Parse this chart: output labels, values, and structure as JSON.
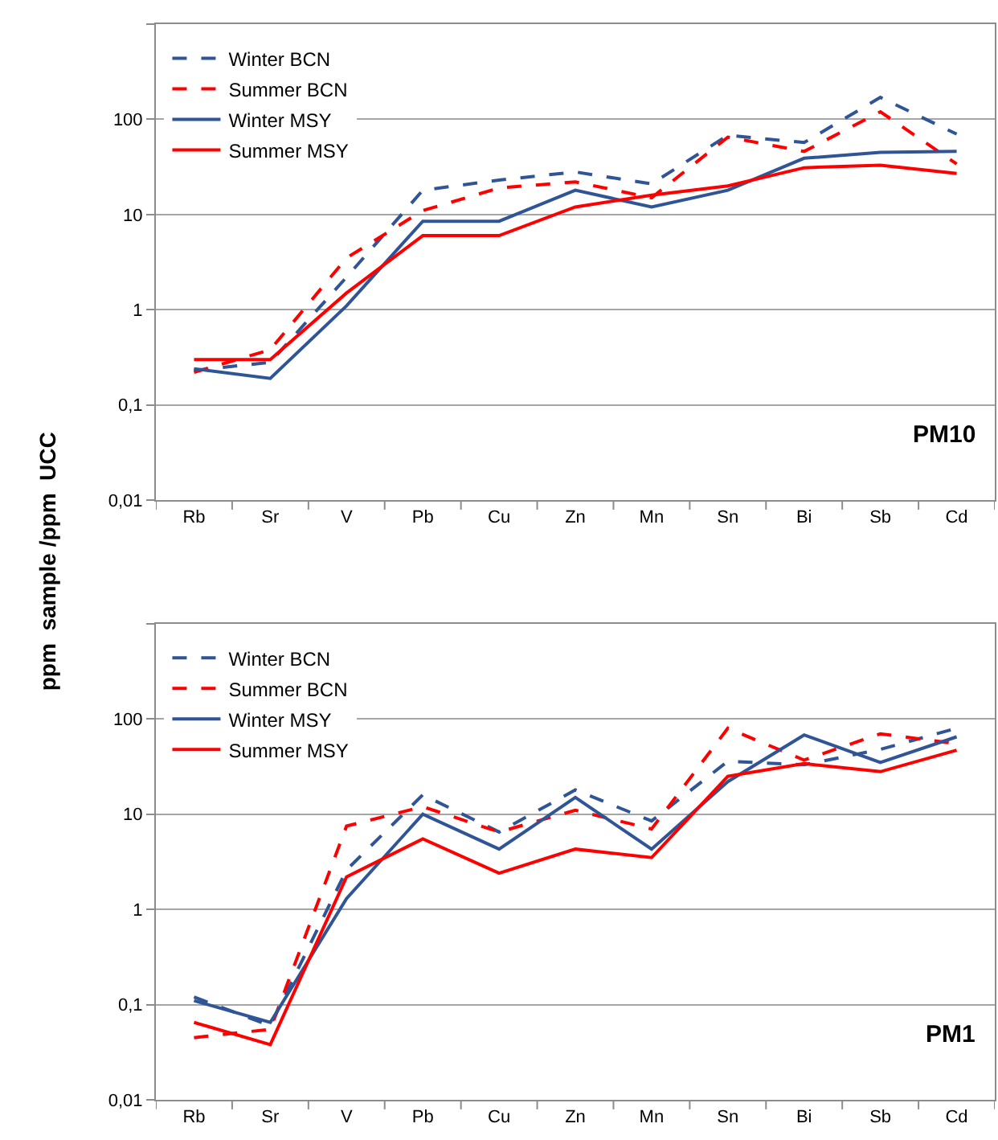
{
  "chart_data": [
    {
      "type": "line",
      "ylabel": "ppm  sample /ppm  UCC",
      "annotations": [
        "PM10"
      ],
      "categories": [
        "Rb",
        "Sr",
        "V",
        "Pb",
        "Cu",
        "Zn",
        "Mn",
        "Sn",
        "Bi",
        "Sb",
        "Cd"
      ],
      "log": true,
      "ylim": [
        0.01,
        1000
      ],
      "yticks": [
        {
          "value": 0.01,
          "label": "0,01"
        },
        {
          "value": 0.1,
          "label": "0,1"
        },
        1,
        10,
        100,
        {
          "value": 1000,
          "label": null
        }
      ],
      "grid": "y",
      "legend": "top left",
      "series": [
        {
          "name": "Winter BCN",
          "color": "#2f5597",
          "line_style": "dashed",
          "values": [
            0.23,
            0.28,
            2.2,
            18,
            23,
            28,
            21,
            68,
            57,
            170,
            70
          ]
        },
        {
          "name": "Summer BCN",
          "color": "#ff0000",
          "line_style": "dashed",
          "values": [
            0.22,
            0.38,
            3.5,
            11,
            19,
            22,
            15,
            65,
            46,
            120,
            34
          ]
        },
        {
          "name": "Winter MSY",
          "color": "#2f5597",
          "line_style": "solid",
          "values": [
            0.24,
            0.19,
            1.1,
            8.5,
            8.5,
            18,
            12,
            18,
            39,
            45,
            46
          ]
        },
        {
          "name": "Summer MSY",
          "color": "#ff0000",
          "line_style": "solid",
          "values": [
            0.3,
            0.3,
            1.5,
            6,
            6,
            12,
            16,
            20,
            31,
            33,
            27
          ]
        }
      ]
    },
    {
      "type": "line",
      "annotations": [
        "PM1"
      ],
      "categories": [
        "Rb",
        "Sr",
        "V",
        "Pb",
        "Cu",
        "Zn",
        "Mn",
        "Sn",
        "Bi",
        "Sb",
        "Cd"
      ],
      "log": true,
      "ylim": [
        0.01,
        1000
      ],
      "yticks": [
        {
          "value": 0.01,
          "label": "0,01"
        },
        {
          "value": 0.1,
          "label": "0,1"
        },
        1,
        10,
        100,
        {
          "value": 1000,
          "label": null
        }
      ],
      "grid": "y",
      "legend": "top left",
      "series": [
        {
          "name": "Winter BCN",
          "color": "#2f5597",
          "line_style": "dashed",
          "values": [
            0.12,
            0.06,
            2.6,
            16,
            6.5,
            18,
            8.5,
            36,
            33,
            48,
            80
          ]
        },
        {
          "name": "Summer BCN",
          "color": "#ff0000",
          "line_style": "dashed",
          "values": [
            0.045,
            0.055,
            7.5,
            12,
            6.5,
            11,
            7,
            80,
            37,
            70,
            55
          ]
        },
        {
          "name": "Winter MSY",
          "color": "#2f5597",
          "line_style": "solid",
          "values": [
            0.11,
            0.065,
            1.3,
            10,
            4.3,
            15,
            4.3,
            22,
            68,
            35,
            65
          ]
        },
        {
          "name": "Summer MSY",
          "color": "#ff0000",
          "line_style": "solid",
          "values": [
            0.065,
            0.038,
            2.2,
            5.5,
            2.4,
            4.3,
            3.5,
            25,
            34,
            28,
            47
          ]
        }
      ]
    }
  ]
}
